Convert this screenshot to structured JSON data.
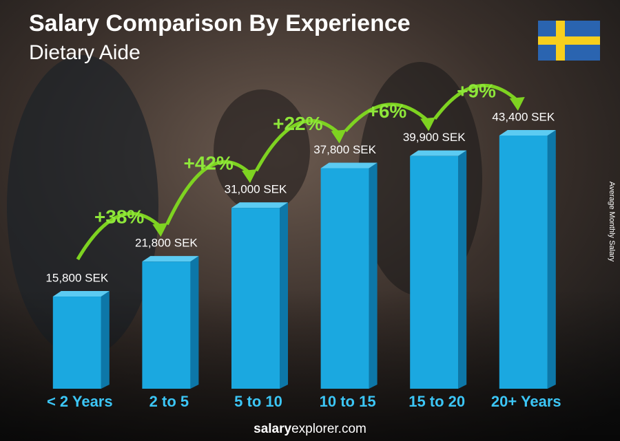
{
  "chart_data": {
    "type": "bar",
    "title": "Salary Comparison By Experience",
    "subtitle": "Dietary Aide",
    "y_axis_label": "Average Monthly Salary",
    "categories": [
      "< 2 Years",
      "2 to 5",
      "5 to 10",
      "10 to 15",
      "15 to 20",
      "20+ Years"
    ],
    "values": [
      15800,
      21800,
      31000,
      37800,
      39900,
      43400
    ],
    "value_labels": [
      "15,800 SEK",
      "21,800 SEK",
      "31,000 SEK",
      "37,800 SEK",
      "39,900 SEK",
      "43,400 SEK"
    ],
    "changes": [
      "+38%",
      "+42%",
      "+22%",
      "+6%",
      "+9%"
    ],
    "color": "#1ba8e0",
    "footer": {
      "bold": "salary",
      "rest": "explorer.com"
    }
  }
}
